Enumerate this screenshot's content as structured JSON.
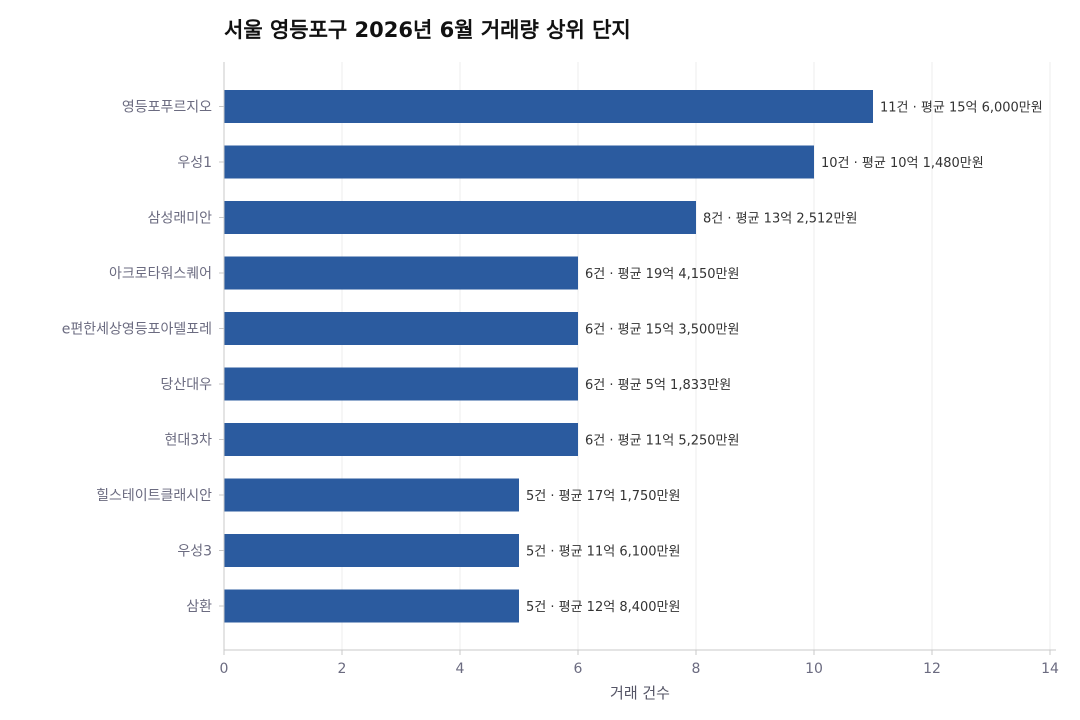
{
  "chart_data": {
    "type": "bar",
    "orientation": "horizontal",
    "title": "서울 영등포구 2026년 6월 거래량 상위 단지",
    "xlabel": "거래 건수",
    "ylabel": "",
    "xlim": [
      0,
      14.3
    ],
    "xticks": [
      "0",
      "2",
      "4",
      "6",
      "8",
      "10",
      "12",
      "14"
    ],
    "grid": "vertical",
    "bar_color": "#2b5b9f",
    "categories": [
      "영등포푸르지오",
      "우성1",
      "삼성래미안",
      "아크로타워스퀘어",
      "e편한세상영등포아델포레",
      "당산대우",
      "현대3차",
      "힐스테이트클래시안",
      "우성3",
      "삼환"
    ],
    "values": [
      11,
      10,
      8,
      6,
      6,
      6,
      6,
      5,
      5,
      5
    ],
    "data_labels": [
      "11건 · 평균 15억 6,000만원",
      "10건 · 평균 10억 1,480만원",
      "8건 · 평균 13억 2,512만원",
      "6건 · 평균 19억 4,150만원",
      "6건 · 평균 15억 3,500만원",
      "6건 · 평균 5억 1,833만원",
      "6건 · 평균 11억 5,250만원",
      "5건 · 평균 17억 1,750만원",
      "5건 · 평균 11억 6,100만원",
      "5건 · 평균 12억 8,400만원"
    ]
  }
}
